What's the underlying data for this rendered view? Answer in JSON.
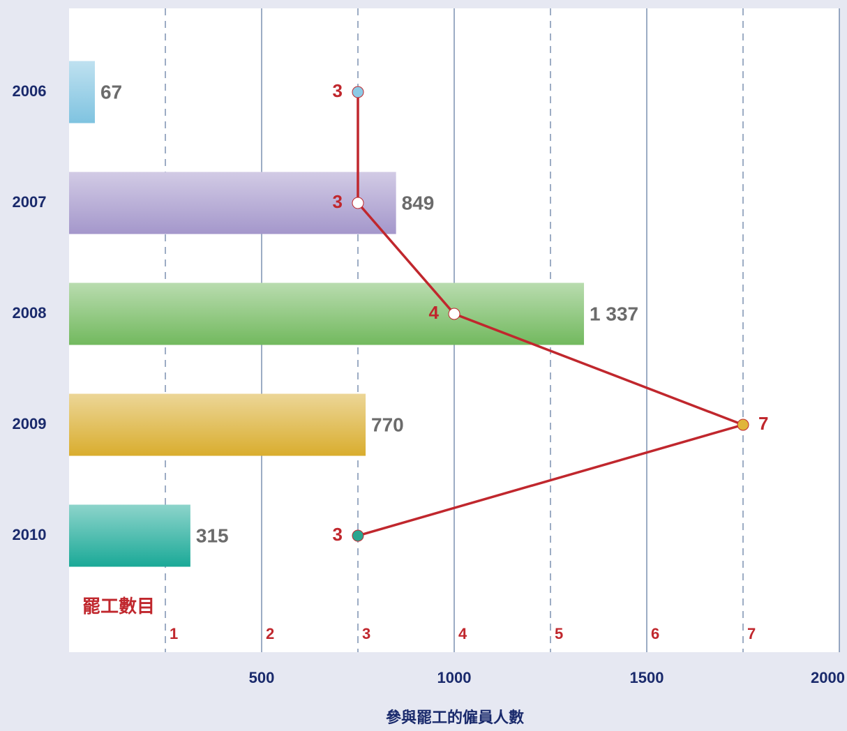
{
  "chart_data": {
    "type": "bar",
    "categories": [
      "2006",
      "2007",
      "2008",
      "2009",
      "2010"
    ],
    "xlabel": "參與罷工的僱員人數",
    "x2label": "罷工數目",
    "xlim": [
      0,
      2000
    ],
    "xticks": [
      500,
      1000,
      1500,
      2000
    ],
    "x2lim": [
      0,
      8
    ],
    "x2ticks": [
      1,
      2,
      3,
      4,
      5,
      6,
      7
    ],
    "grid": true,
    "series": [
      {
        "type": "bar",
        "values": [
          67,
          849,
          1337,
          770,
          315
        ],
        "value_labels": [
          "67",
          "849",
          "1 337",
          "770",
          "315"
        ],
        "colors": [
          "#7fc3e0",
          "#a497cb",
          "#72b95e",
          "#d9ad2e",
          "#1aa997"
        ]
      },
      {
        "type": "line",
        "axis": "x2",
        "values": [
          3,
          3,
          4,
          7,
          3
        ],
        "color": "#c0272d",
        "marker_colors": [
          "#8ccbe6",
          "#ffffff",
          "#ffffff",
          "#e0b53a",
          "#2aa58f"
        ]
      }
    ]
  }
}
